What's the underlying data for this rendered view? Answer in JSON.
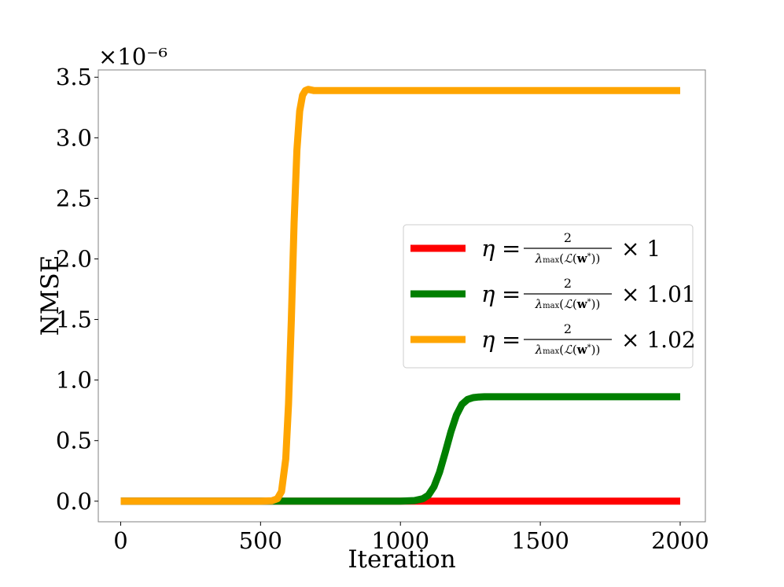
{
  "chart_data": {
    "type": "line",
    "xlabel": "Iteration",
    "ylabel": "NMSE",
    "y_scale_label": "×10⁻⁶",
    "xlim": [
      -80,
      2090
    ],
    "ylim": [
      -0.17,
      3.56
    ],
    "x_ticks": [
      0,
      500,
      1000,
      1500,
      2000
    ],
    "x_tick_labels": [
      "0",
      "500",
      "1000",
      "1500",
      "2000"
    ],
    "y_ticks": [
      0.0,
      0.5,
      1.0,
      1.5,
      2.0,
      2.5,
      3.0,
      3.5
    ],
    "y_tick_labels": [
      "0.0",
      "0.5",
      "1.0",
      "1.5",
      "2.0",
      "2.5",
      "3.0",
      "3.5"
    ],
    "grid": false,
    "legend_position": "center-right",
    "series": [
      {
        "name": "η = 2/λmax(L(w*)) × 1",
        "legend_multiplier": "× 1",
        "color": "#ff0000",
        "x": [
          0,
          500,
          1000,
          1500,
          2000
        ],
        "y": [
          0.0,
          0.0,
          0.0,
          0.0,
          0.0
        ]
      },
      {
        "name": "η = 2/λmax(L(w*)) × 1.01",
        "legend_multiplier": "× 1.01",
        "color": "#007f00",
        "x": [
          0,
          500,
          1000,
          1050,
          1080,
          1100,
          1120,
          1140,
          1160,
          1180,
          1200,
          1220,
          1240,
          1260,
          1280,
          1300,
          1400,
          1600,
          2000
        ],
        "y": [
          0.0,
          0.0,
          0.0,
          0.005,
          0.02,
          0.05,
          0.12,
          0.24,
          0.4,
          0.57,
          0.71,
          0.8,
          0.84,
          0.855,
          0.86,
          0.862,
          0.862,
          0.862,
          0.862
        ]
      },
      {
        "name": "η = 2/λmax(L(w*)) × 1.02",
        "legend_multiplier": "× 1.02",
        "color": "#ffa500",
        "x": [
          0,
          500,
          540,
          560,
          575,
          590,
          600,
          610,
          620,
          630,
          640,
          650,
          660,
          670,
          690,
          750,
          1000,
          1500,
          2000
        ],
        "y": [
          0.0,
          0.0,
          0.003,
          0.02,
          0.08,
          0.35,
          0.8,
          1.5,
          2.3,
          2.9,
          3.22,
          3.35,
          3.39,
          3.4,
          3.39,
          3.39,
          3.39,
          3.39,
          3.39
        ]
      }
    ]
  }
}
